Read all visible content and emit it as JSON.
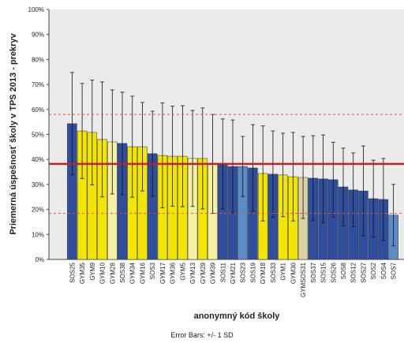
{
  "chart_data": {
    "type": "bar",
    "y_label": "Priemerná úspešnosť školy v TPS 2013 - prekryv",
    "x_label": "anonymný kód školy",
    "footnote": "Error Bars: +/- 1 SD",
    "categories": [
      "SOS25",
      "GYM35",
      "GYM9",
      "GYM10",
      "GYM28",
      "SOS38",
      "GYM34",
      "GYM16",
      "SOS3",
      "GYM17",
      "GYM36",
      "GYM5",
      "GYM13",
      "GYM29",
      "GYM39",
      "SOS11",
      "GYM21",
      "SOS23",
      "SOS19",
      "GYM18",
      "SOS33",
      "GYM1",
      "GYM30",
      "GYMSOS31",
      "SOS37",
      "SOS15",
      "SOS26",
      "SOS8",
      "SOS12",
      "SOS27",
      "SOS2",
      "SOS4",
      "SOS7"
    ],
    "values": [
      54.3,
      51.4,
      50.8,
      48,
      47,
      46.4,
      45.1,
      45.1,
      42.3,
      41.6,
      41.3,
      41.3,
      40.4,
      40.4,
      38.2,
      38.2,
      37.2,
      37.2,
      36.6,
      34.4,
      34.1,
      33.8,
      33.1,
      32.8,
      32.5,
      32.2,
      31.9,
      29,
      27.8,
      27.4,
      24.3,
      24,
      17.7
    ],
    "errors": [
      20.5,
      19,
      21,
      23,
      20.8,
      20.5,
      20.2,
      17.7,
      17,
      21,
      20,
      20.2,
      19.2,
      20.2,
      19.8,
      18,
      18.6,
      12,
      17.3,
      19,
      17.3,
      16.7,
      17.7,
      16.4,
      17,
      17.6,
      15,
      15.5,
      14.8,
      18,
      15.4,
      16.4,
      12.3
    ],
    "colors": [
      "#2f4f9e",
      "#f2e600",
      "#f2e600",
      "#f2e600",
      "#f4f0a6",
      "#2f4f9e",
      "#f2e600",
      "#f2e600",
      "#2f4f9e",
      "#f2e600",
      "#f2e600",
      "#f2e600",
      "#f4f0a6",
      "#f2e600",
      "#f4f0a6",
      "#2f4f9e",
      "#2f4f9e",
      "#5b8cc8",
      "#2f4f9e",
      "#f2e600",
      "#2f4f9e",
      "#f2e600",
      "#f2e600",
      "#d8d2a4",
      "#2f4f9e",
      "#2f4f9e",
      "#2f4f9e",
      "#2f4f9e",
      "#2f4f9e",
      "#2f4f9e",
      "#2f4f9e",
      "#2f4f9e",
      "#5b8cc8"
    ],
    "reference_lines": [
      {
        "value": 38.2,
        "style": "solid",
        "color": "#c0202a"
      },
      {
        "value": 58,
        "style": "dashed",
        "color": "#e05050"
      },
      {
        "value": 18.4,
        "style": "dashed",
        "color": "#e05050"
      }
    ],
    "ylim": [
      0,
      100
    ],
    "yticks": [
      {
        "value": 0,
        "label": "0%"
      },
      {
        "value": 10,
        "label": "10%"
      },
      {
        "value": 20,
        "label": "20%"
      },
      {
        "value": 30,
        "label": "30%"
      },
      {
        "value": 40,
        "label": "40%"
      },
      {
        "value": 50,
        "label": "50%"
      },
      {
        "value": 60,
        "label": "60%"
      },
      {
        "value": 70,
        "label": "70%"
      },
      {
        "value": 80,
        "label": "80%"
      },
      {
        "value": 90,
        "label": "90%"
      },
      {
        "value": 100,
        "label": "100%"
      }
    ]
  }
}
